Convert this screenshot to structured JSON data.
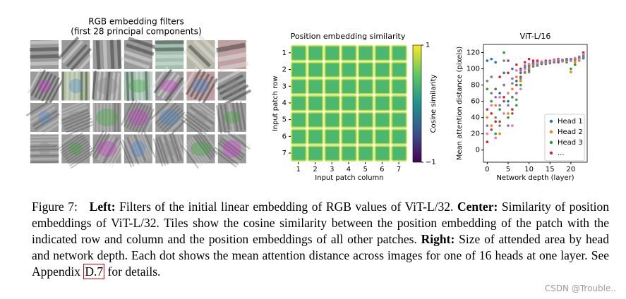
{
  "figure": {
    "left": {
      "title": [
        "RGB embedding filters",
        "(first 28 principal components)"
      ]
    }
  },
  "chart_data": [
    {
      "type": "heatmap",
      "title": "Position embedding similarity",
      "x_label": "Input patch column",
      "y_label": "Input patch row",
      "xticks": [
        1,
        2,
        3,
        4,
        5,
        6,
        7
      ],
      "yticks": [
        1,
        2,
        3,
        4,
        5,
        6,
        7
      ],
      "values": [
        [
          0.35,
          0.35,
          0.35,
          0.35,
          0.35,
          0.35,
          0.35
        ],
        [
          0.35,
          0.35,
          0.35,
          0.35,
          0.35,
          0.35,
          0.35
        ],
        [
          0.35,
          0.35,
          0.35,
          0.35,
          0.35,
          0.35,
          0.35
        ],
        [
          0.35,
          0.35,
          0.35,
          0.35,
          0.35,
          0.35,
          0.35
        ],
        [
          0.35,
          0.35,
          0.35,
          0.35,
          0.35,
          0.35,
          0.35
        ],
        [
          0.35,
          0.35,
          0.35,
          0.35,
          0.35,
          0.35,
          0.35
        ],
        [
          0.35,
          0.35,
          0.35,
          0.35,
          0.35,
          0.35,
          0.35
        ]
      ],
      "colorbar": {
        "label": "Cosine similarity",
        "lim": [
          -1,
          1
        ],
        "ticks": [
          1,
          {
            "value": -1,
            "label": "−1"
          }
        ],
        "colormap": "viridis"
      }
    },
    {
      "type": "scatter",
      "title": "ViT-L/16",
      "x_label": "Network depth (layer)",
      "y_label": "Mean attention distance (pixels)",
      "xlim": [
        -0.9,
        23.9
      ],
      "ylim": [
        -15,
        130
      ],
      "xticks": [
        0,
        5,
        10,
        15,
        20
      ],
      "yticks": [
        0,
        20,
        40,
        60,
        80,
        100,
        120
      ],
      "legend": "lower right",
      "x": [
        0,
        1,
        2,
        3,
        4,
        5,
        6,
        7,
        8,
        9,
        10,
        11,
        12,
        13,
        14,
        15,
        16,
        17,
        18,
        19,
        20,
        21,
        22,
        23
      ],
      "series": [
        {
          "name": "Head 1",
          "color": "#1f77b4",
          "values": [
            110,
            112,
            108,
            70,
            95,
            60,
            100,
            85,
            95,
            100,
            105,
            108,
            107,
            108,
            109,
            108,
            109,
            110,
            110,
            110,
            111,
            112,
            112,
            113
          ]
        },
        {
          "name": "Head 2",
          "color": "#ff7f0e",
          "values": [
            40,
            30,
            55,
            20,
            80,
            45,
            75,
            90,
            85,
            95,
            100,
            104,
            106,
            107,
            108,
            107,
            108,
            110,
            109,
            110,
            96,
            108,
            110,
            117
          ]
        },
        {
          "name": "Head 3",
          "color": "#2ca02c",
          "values": [
            75,
            60,
            20,
            50,
            120,
            40,
            65,
            55,
            80,
            102,
            98,
            103,
            104,
            106,
            106,
            108,
            108,
            109,
            110,
            108,
            100,
            105,
            112,
            114
          ]
        },
        {
          "name": "...",
          "color": "#d62728",
          "values": [
            10,
            45,
            35,
            90,
            65,
            95,
            50,
            105,
            100,
            108,
            112,
            110,
            110,
            108,
            110,
            109,
            111,
            112,
            110,
            111,
            112,
            113,
            114,
            120
          ]
        },
        {
          "color": "#9467bd",
          "values": [
            30,
            90,
            65,
            55,
            80,
            30,
            88,
            70,
            98,
            104,
            96,
            107,
            105,
            108,
            107,
            110,
            109,
            109,
            111,
            110,
            110,
            111,
            113,
            115
          ]
        },
        {
          "color": "#8c564b",
          "values": [
            50,
            25,
            75,
            35,
            60,
            110,
            45,
            80,
            90,
            100,
            104,
            106,
            108,
            107,
            108,
            109,
            110,
            108,
            110,
            112,
            111,
            112,
            114,
            116
          ]
        },
        {
          "color": "#e377c2",
          "values": [
            20,
            55,
            15,
            65,
            45,
            70,
            30,
            98,
            75,
            100,
            106,
            105,
            107,
            109,
            108,
            108,
            110,
            111,
            109,
            110,
            111,
            113,
            112,
            118
          ]
        },
        {
          "color": "#7f7f7f",
          "values": [
            85,
            70,
            40,
            30,
            110,
            55,
            82,
            62,
            88,
            96,
            102,
            106,
            104,
            107,
            109,
            107,
            108,
            110,
            111,
            111,
            112,
            111,
            115,
            116
          ]
        }
      ]
    }
  ],
  "caption": {
    "parts": [
      "Figure 7:",
      "Left:",
      " Filters of the initial linear embedding of RGB values of ViT-L/32. ",
      "Center:",
      " Similarity of position embeddings of ViT-L/32. Tiles show the cosine similarity between the position embedding of the patch with the indicated row and column and the position embeddings of all other patches. ",
      "Right:",
      " Size of attended area by head and network depth. Each dot shows the mean attention distance across images for one of 16 heads at one layer. See Appendix ",
      "D.7",
      " for details."
    ]
  },
  "watermark": "CSDN @Trouble.."
}
